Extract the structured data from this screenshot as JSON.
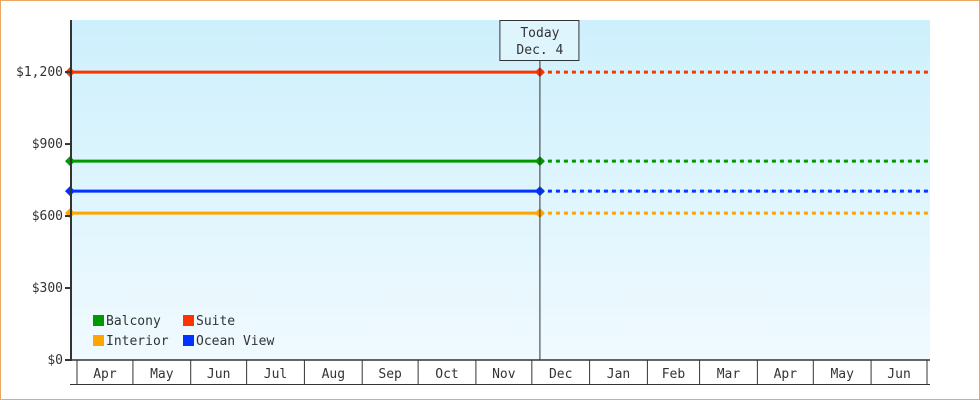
{
  "chart_data": {
    "type": "line",
    "ylabel": "",
    "xlabel": "",
    "ylim": [
      0,
      1417
    ],
    "yticks": [
      0,
      300,
      600,
      900,
      1200
    ],
    "ytick_labels": [
      "$0",
      "$300",
      "$600",
      "$900",
      "$1,200"
    ],
    "x_categories": [
      "Apr",
      "May",
      "Jun",
      "Jul",
      "Aug",
      "Sep",
      "Oct",
      "Nov",
      "Dec",
      "Jan",
      "Feb",
      "Mar",
      "Apr",
      "May",
      "Jun"
    ],
    "today_marker": {
      "line1": "Today",
      "line2": "Dec. 4",
      "month": "Dec",
      "day": 4
    },
    "grid": false,
    "legend_placement": "bottom-left",
    "series": [
      {
        "name": "Balcony",
        "color": "#009900",
        "value": 829,
        "projected_after_today": true
      },
      {
        "name": "Suite",
        "color": "#ff3300",
        "value": 1200,
        "projected_after_today": true
      },
      {
        "name": "Interior",
        "color": "#ffa500",
        "value": 612,
        "projected_after_today": true
      },
      {
        "name": "Ocean View",
        "color": "#0033ff",
        "value": 704,
        "projected_after_today": true
      }
    ],
    "background_gradient": [
      "#cdf0fc",
      "#f0faff"
    ],
    "border_color": "#e8a860"
  }
}
